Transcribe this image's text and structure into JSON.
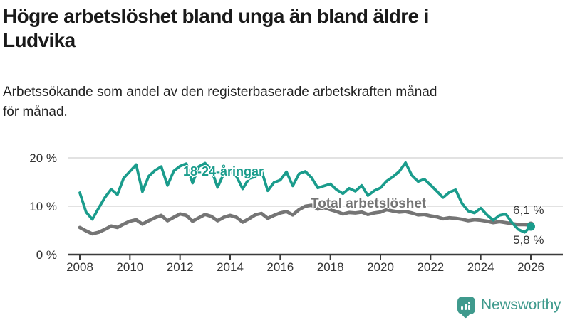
{
  "header": {
    "title_lines": [
      "Högre arbetslöshet bland unga än bland äldre i",
      "Ludvika"
    ],
    "subtitle_lines": [
      "Arbetssökande som andel av den registerbaserade arbetskraften månad",
      "för månad."
    ]
  },
  "colors": {
    "youth_line": "#1a9c8c",
    "total_line": "#757575",
    "axis": "#3b3b3b",
    "grid": "#d8d8d8",
    "tick_text": "#333333",
    "logo": "#3f9a8d"
  },
  "chart_data": {
    "type": "line",
    "x_unit": "year",
    "x_start": 2008,
    "x_step": 0.25,
    "x_axis": {
      "ticks": [
        2008,
        2010,
        2012,
        2014,
        2016,
        2018,
        2020,
        2022,
        2024,
        2026
      ]
    },
    "y_axis": {
      "range": [
        0,
        21
      ],
      "ticks": [
        {
          "value": 0,
          "label": "0 %"
        },
        {
          "value": 10,
          "label": "10 %"
        },
        {
          "value": 20,
          "label": "20 %"
        }
      ]
    },
    "grid": "horizontal",
    "legend": "inline-labels",
    "series": [
      {
        "name": "18-24-åringar",
        "color": "#1a9c8c",
        "end_label": "5,8 %",
        "end_value": 5.8,
        "values": [
          12.8,
          8.8,
          7.3,
          9.6,
          11.8,
          13.5,
          12.4,
          15.8,
          17.2,
          18.6,
          13.0,
          16.2,
          17.4,
          18.2,
          14.3,
          17.3,
          18.3,
          18.8,
          14.8,
          18.2,
          18.9,
          17.6,
          13.9,
          16.8,
          17.1,
          16.2,
          13.6,
          15.7,
          16.1,
          17.4,
          13.2,
          14.9,
          15.4,
          17.1,
          14.2,
          16.7,
          17.2,
          15.9,
          13.8,
          14.2,
          14.6,
          13.4,
          12.6,
          13.7,
          13.1,
          14.3,
          12.2,
          13.2,
          13.8,
          15.2,
          16.1,
          17.2,
          19.0,
          16.4,
          15.1,
          15.6,
          14.4,
          13.1,
          11.8,
          12.9,
          13.4,
          10.6,
          9.0,
          8.6,
          9.6,
          8.2,
          7.1,
          8.1,
          8.4,
          6.6,
          5.2,
          4.6,
          5.8
        ]
      },
      {
        "name": "Total arbetslöshet",
        "color": "#757575",
        "end_label": "6,1 %",
        "end_value": 6.1,
        "values": [
          5.6,
          4.9,
          4.3,
          4.6,
          5.2,
          5.9,
          5.6,
          6.3,
          6.9,
          7.2,
          6.3,
          7.0,
          7.6,
          8.1,
          7.0,
          7.7,
          8.4,
          8.1,
          6.9,
          7.6,
          8.3,
          7.9,
          7.0,
          7.7,
          8.1,
          7.7,
          6.7,
          7.4,
          8.2,
          8.5,
          7.5,
          8.1,
          8.6,
          8.9,
          8.2,
          9.3,
          10.0,
          10.2,
          9.4,
          9.7,
          9.3,
          8.9,
          8.4,
          8.7,
          8.6,
          8.8,
          8.3,
          8.6,
          8.8,
          9.3,
          9.0,
          8.8,
          8.9,
          8.6,
          8.2,
          8.3,
          8.0,
          7.8,
          7.4,
          7.6,
          7.5,
          7.3,
          7.0,
          7.2,
          7.1,
          6.9,
          6.6,
          6.8,
          6.6,
          6.4,
          6.2,
          6.2,
          6.1
        ]
      }
    ]
  },
  "branding": {
    "logo_text": "Newsworthy"
  }
}
